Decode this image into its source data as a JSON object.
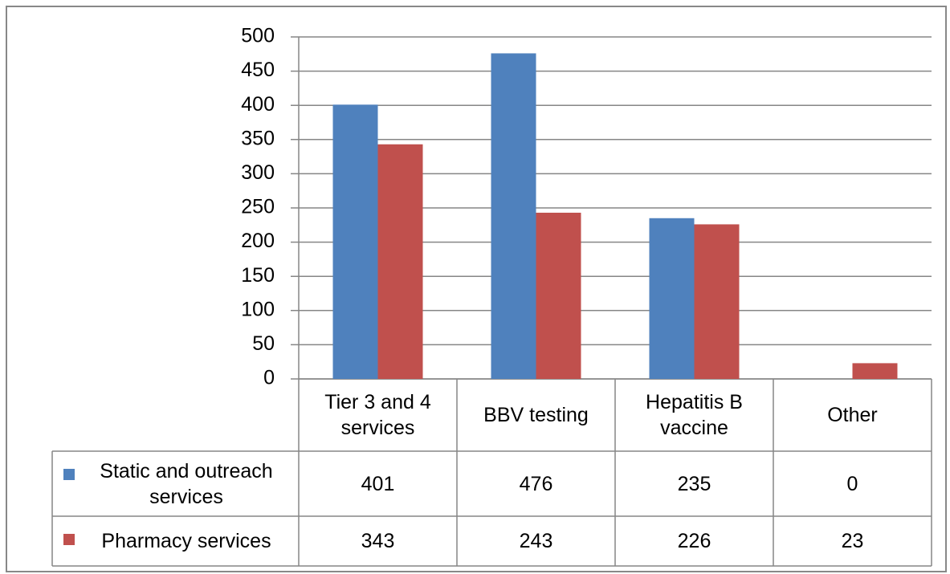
{
  "chart_data": {
    "type": "bar",
    "categories": [
      "Tier 3 and 4 services",
      "BBV testing",
      "Hepatitis B vaccine",
      "Other"
    ],
    "series": [
      {
        "name": "Static and outreach services",
        "color": "#4f81bd",
        "values": [
          401,
          476,
          235,
          0
        ]
      },
      {
        "name": "Pharmacy services",
        "color": "#c0504d",
        "values": [
          343,
          243,
          226,
          23
        ]
      }
    ],
    "ylim": [
      0,
      500
    ],
    "yticks": [
      0,
      50,
      100,
      150,
      200,
      250,
      300,
      350,
      400,
      450,
      500
    ],
    "grid": true
  }
}
